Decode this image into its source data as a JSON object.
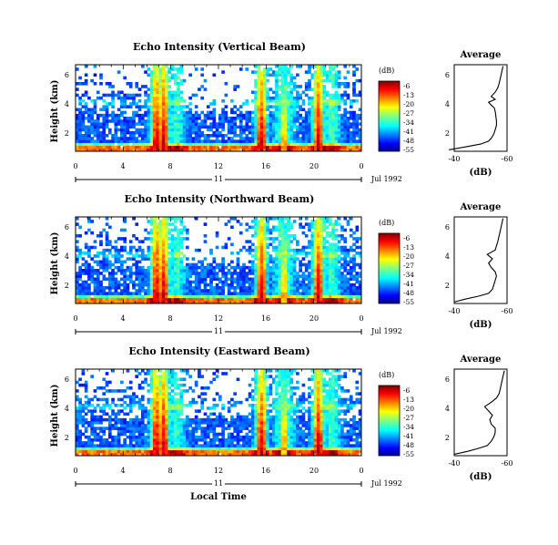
{
  "chart_data": [
    {
      "type": "heatmap",
      "title": "Echo Intensity (Vertical Beam)",
      "ylabel": "Height (km)",
      "xlabel": "",
      "x_ticks": [
        "0",
        "4",
        "8",
        "12",
        "16",
        "20",
        "0"
      ],
      "y_ticks": [
        "2",
        "4",
        "6"
      ],
      "date_day": "11",
      "date_label": "Jul 1992",
      "colorbar_unit": "(dB)",
      "colorbar_ticks": [
        "-6",
        "-13",
        "-20",
        "-27",
        "-34",
        "-41",
        "-48",
        "-55"
      ],
      "xlim": [
        0,
        24
      ],
      "ylim": [
        0.5,
        6.5
      ],
      "heavy_echo_hours": [
        6.8,
        7.4,
        15.6,
        20.4
      ]
    },
    {
      "type": "heatmap",
      "title": "Echo Intensity (Northward Beam)",
      "ylabel": "Height (km)",
      "xlabel": "",
      "x_ticks": [
        "0",
        "4",
        "8",
        "12",
        "16",
        "20",
        "0"
      ],
      "y_ticks": [
        "2",
        "4",
        "6"
      ],
      "date_day": "11",
      "date_label": "Jul 1992",
      "colorbar_unit": "(dB)",
      "colorbar_ticks": [
        "-6",
        "-13",
        "-20",
        "-27",
        "-34",
        "-41",
        "-48",
        "-55"
      ],
      "xlim": [
        0,
        24
      ],
      "ylim": [
        0.5,
        6.5
      ],
      "heavy_echo_hours": [
        6.8,
        7.4,
        15.6,
        20.4
      ]
    },
    {
      "type": "heatmap",
      "title": "Echo Intensity (Eastward Beam)",
      "ylabel": "Height (km)",
      "xlabel": "Local Time",
      "x_ticks": [
        "0",
        "4",
        "8",
        "12",
        "16",
        "20",
        "0"
      ],
      "y_ticks": [
        "2",
        "4",
        "6"
      ],
      "date_day": "11",
      "date_label": "Jul 1992",
      "colorbar_unit": "(dB)",
      "colorbar_ticks": [
        "-6",
        "-13",
        "-20",
        "-27",
        "-34",
        "-41",
        "-48",
        "-55"
      ],
      "xlim": [
        0,
        24
      ],
      "ylim": [
        0.5,
        6.5
      ],
      "heavy_echo_hours": [
        6.8,
        7.4,
        15.6,
        20.4
      ]
    },
    {
      "type": "line",
      "title": "Average",
      "xlabel": "(dB)",
      "x_ticks": [
        "-40",
        "-60"
      ],
      "y_ticks": [
        "2",
        "4",
        "6"
      ],
      "xlim": [
        -40,
        -60
      ],
      "ylim": [
        0.5,
        6.5
      ],
      "profile": [
        [
          0.6,
          -38
        ],
        [
          0.8,
          -44
        ],
        [
          1.0,
          -50
        ],
        [
          1.2,
          -53
        ],
        [
          1.4,
          -54
        ],
        [
          1.7,
          -55
        ],
        [
          2.0,
          -55.5
        ],
        [
          2.3,
          -56
        ],
        [
          2.6,
          -56
        ],
        [
          2.9,
          -55.8
        ],
        [
          3.2,
          -55.6
        ],
        [
          3.5,
          -55.2
        ],
        [
          3.7,
          -54
        ],
        [
          3.9,
          -53
        ],
        [
          4.1,
          -55.5
        ],
        [
          4.3,
          -54
        ],
        [
          4.6,
          -55.5
        ],
        [
          4.9,
          -56.5
        ],
        [
          5.2,
          -57
        ],
        [
          5.6,
          -57.5
        ],
        [
          6.0,
          -58
        ],
        [
          6.4,
          -58.5
        ]
      ]
    },
    {
      "type": "line",
      "title": "Average",
      "xlabel": "(dB)",
      "x_ticks": [
        "-40",
        "-60"
      ],
      "y_ticks": [
        "2",
        "4",
        "6"
      ],
      "xlim": [
        -40,
        -60
      ],
      "ylim": [
        0.5,
        6.5
      ],
      "profile": [
        [
          0.6,
          -40
        ],
        [
          0.8,
          -44
        ],
        [
          1.0,
          -49
        ],
        [
          1.2,
          -53
        ],
        [
          1.5,
          -54.5
        ],
        [
          1.8,
          -55
        ],
        [
          2.1,
          -55.5
        ],
        [
          2.4,
          -56
        ],
        [
          2.7,
          -55.5
        ],
        [
          3.0,
          -54
        ],
        [
          3.3,
          -53
        ],
        [
          3.6,
          -54.5
        ],
        [
          3.9,
          -52.5
        ],
        [
          4.2,
          -55.5
        ],
        [
          4.5,
          -56
        ],
        [
          4.8,
          -56.5
        ],
        [
          5.2,
          -57
        ],
        [
          5.6,
          -57.5
        ],
        [
          6.0,
          -58
        ],
        [
          6.4,
          -58.5
        ]
      ]
    },
    {
      "type": "line",
      "title": "Average",
      "xlabel": "(dB)",
      "x_ticks": [
        "-40",
        "-60"
      ],
      "y_ticks": [
        "2",
        "4",
        "6"
      ],
      "xlim": [
        -40,
        -60
      ],
      "ylim": [
        0.5,
        6.5
      ],
      "profile": [
        [
          0.6,
          -40
        ],
        [
          0.8,
          -45
        ],
        [
          1.0,
          -49
        ],
        [
          1.2,
          -52.5
        ],
        [
          1.5,
          -54
        ],
        [
          1.8,
          -55
        ],
        [
          2.1,
          -55.5
        ],
        [
          2.4,
          -55.5
        ],
        [
          2.7,
          -54
        ],
        [
          3.0,
          -53.5
        ],
        [
          3.3,
          -54.5
        ],
        [
          3.6,
          -53
        ],
        [
          3.9,
          -51.5
        ],
        [
          4.2,
          -54
        ],
        [
          4.5,
          -56
        ],
        [
          4.8,
          -57
        ],
        [
          5.2,
          -57.5
        ],
        [
          5.6,
          -58
        ],
        [
          6.0,
          -58.5
        ],
        [
          6.4,
          -59
        ]
      ]
    }
  ]
}
